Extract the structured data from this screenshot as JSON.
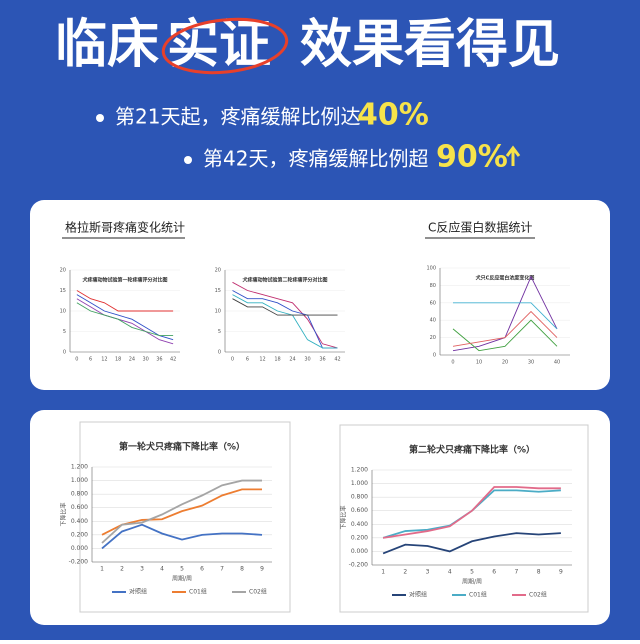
{
  "header": {
    "title_a": "临床",
    "title_b": "实证",
    "title_c": "效果看得见"
  },
  "bullets": [
    {
      "text": "第21天起，疼痛缓解比例达",
      "highlight": "40%"
    },
    {
      "text": "第42天，疼痛缓解比例超",
      "highlight": "90%"
    }
  ],
  "top_panel": {
    "label_left": "格拉斯哥疼痛变化统计",
    "label_right": "C反应蛋白数据统计"
  },
  "charts": [
    {
      "type": "line",
      "title": "犬疼痛动物试验第一轮疼痛评分对比图",
      "categories": [
        "0",
        "6",
        "12",
        "18",
        "24",
        "30",
        "36",
        "42"
      ],
      "ylim": [
        0,
        20
      ],
      "yticks": [
        0,
        5,
        10,
        15,
        20
      ],
      "series": [
        {
          "color": "#e03030",
          "values": [
            15,
            13,
            12,
            10,
            10,
            10,
            10,
            10
          ]
        },
        {
          "color": "#3050c8",
          "values": [
            14,
            12,
            10,
            9,
            8,
            6,
            4,
            3
          ]
        },
        {
          "color": "#9040b0",
          "values": [
            13,
            11,
            9,
            8,
            7,
            5,
            3,
            2
          ]
        },
        {
          "color": "#40a060",
          "values": [
            12,
            10,
            9,
            8,
            6,
            5,
            4,
            4
          ]
        }
      ]
    },
    {
      "type": "line",
      "title": "犬疼痛动物试验第二轮疼痛评分对比图",
      "categories": [
        "0",
        "6",
        "12",
        "18",
        "24",
        "30",
        "36",
        "42"
      ],
      "ylim": [
        0,
        20
      ],
      "yticks": [
        0,
        5,
        10,
        15,
        20
      ],
      "series": [
        {
          "color": "#c03070",
          "values": [
            17,
            15,
            14,
            13,
            12,
            8,
            2,
            1
          ]
        },
        {
          "color": "#3050c8",
          "values": [
            15,
            13,
            13,
            12,
            10,
            9,
            1,
            1
          ]
        },
        {
          "color": "#30b0c0",
          "values": [
            14,
            12,
            12,
            10,
            9,
            3,
            1,
            1
          ]
        },
        {
          "color": "#404040",
          "values": [
            13,
            11,
            11,
            9,
            9,
            9,
            9,
            9
          ]
        }
      ]
    },
    {
      "type": "line",
      "title": "犬只C反应蛋白浓度变化图",
      "categories": [
        "0",
        "10",
        "20",
        "30",
        "40"
      ],
      "ylim": [
        0,
        100
      ],
      "yticks": [
        0,
        20,
        40,
        60,
        80,
        100
      ],
      "series": [
        {
          "color": "#7030a0",
          "values": [
            5,
            10,
            20,
            90,
            30
          ]
        },
        {
          "color": "#40b0d0",
          "values": [
            60,
            60,
            60,
            60,
            30
          ]
        },
        {
          "color": "#40a040",
          "values": [
            30,
            5,
            10,
            40,
            10
          ]
        },
        {
          "color": "#e06060",
          "values": [
            10,
            15,
            20,
            50,
            20
          ]
        }
      ]
    },
    {
      "type": "line",
      "title": "第一轮犬只疼痛下降比率（%）",
      "x_label": "周期/周",
      "y_label": "下降比率",
      "categories": [
        "1",
        "2",
        "3",
        "4",
        "5",
        "6",
        "7",
        "8",
        "9"
      ],
      "ylim": [
        -0.2,
        1.2
      ],
      "yticks": [
        {
          "value": -0.2,
          "label": "-0.200"
        },
        {
          "value": 0,
          "label": "0.000"
        },
        {
          "value": 0.2,
          "label": "0.200"
        },
        {
          "value": 0.4,
          "label": "0.400"
        },
        {
          "value": 0.6,
          "label": "0.600"
        },
        {
          "value": 0.8,
          "label": "0.800"
        },
        {
          "value": 1.0,
          "label": "1.000"
        },
        {
          "value": 1.2,
          "label": "1.200"
        }
      ],
      "series": [
        {
          "name": "对照组",
          "color": "#4472c4",
          "values": [
            0.0,
            0.25,
            0.35,
            0.22,
            0.13,
            0.2,
            0.22,
            0.22,
            0.2
          ]
        },
        {
          "name": "C01组",
          "color": "#ed7d31",
          "values": [
            0.2,
            0.35,
            0.42,
            0.43,
            0.55,
            0.63,
            0.78,
            0.87,
            0.87
          ]
        },
        {
          "name": "C02组",
          "color": "#a5a5a5",
          "values": [
            0.08,
            0.35,
            0.38,
            0.5,
            0.65,
            0.78,
            0.93,
            1.0,
            1.0
          ]
        }
      ]
    },
    {
      "type": "line",
      "title": "第二轮犬只疼痛下降比率（%）",
      "x_label": "周期/周",
      "y_label": "下降比率",
      "categories": [
        "1",
        "2",
        "3",
        "4",
        "5",
        "6",
        "7",
        "8",
        "9"
      ],
      "ylim": [
        -0.2,
        1.2
      ],
      "yticks": [
        {
          "value": -0.2,
          "label": "-0.200"
        },
        {
          "value": 0,
          "label": "0.000"
        },
        {
          "value": 0.2,
          "label": "0.200"
        },
        {
          "value": 0.4,
          "label": "0.400"
        },
        {
          "value": 0.6,
          "label": "0.600"
        },
        {
          "value": 0.8,
          "label": "0.800"
        },
        {
          "value": 1.0,
          "label": "1.000"
        },
        {
          "value": 1.2,
          "label": "1.200"
        }
      ],
      "series": [
        {
          "name": "对照组",
          "color": "#264478",
          "values": [
            -0.03,
            0.1,
            0.08,
            0.0,
            0.15,
            0.22,
            0.27,
            0.25,
            0.27
          ]
        },
        {
          "name": "C01组",
          "color": "#4bacc6",
          "values": [
            0.2,
            0.3,
            0.32,
            0.38,
            0.6,
            0.9,
            0.9,
            0.88,
            0.9
          ]
        },
        {
          "name": "C02组",
          "color": "#e26b8a",
          "values": [
            0.2,
            0.25,
            0.3,
            0.37,
            0.6,
            0.95,
            0.95,
            0.93,
            0.93
          ]
        }
      ]
    }
  ]
}
